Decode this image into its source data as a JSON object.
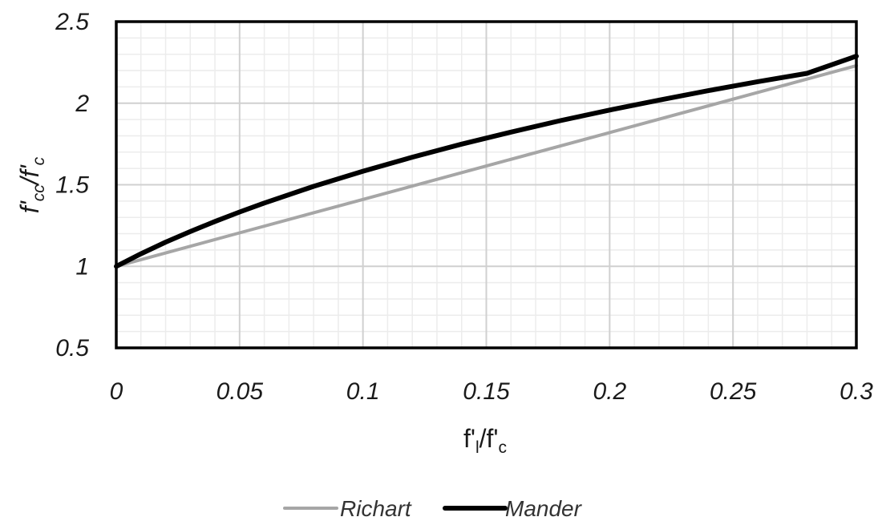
{
  "chart_data": {
    "type": "line",
    "xlabel": {
      "base": "f'",
      "sub": "l",
      "tail": "/f'",
      "sub2": "c"
    },
    "ylabel": {
      "base": "f'",
      "sub": "cc",
      "tail": "/f'",
      "sub2": "c"
    },
    "xlim": [
      0,
      0.3
    ],
    "ylim": [
      0.5,
      2.5
    ],
    "x_ticks": [
      "0",
      "0.05",
      "0.1",
      "0.15",
      "0.2",
      "0.25",
      "0.3"
    ],
    "y_ticks": [
      "0.5",
      "1",
      "1.5",
      "2",
      "2.5"
    ],
    "grid": true,
    "legend_position": "bottom",
    "series": [
      {
        "name": "Richart",
        "color": "#a6a6a6",
        "x": [
          0,
          0.05,
          0.1,
          0.15,
          0.2,
          0.25,
          0.3
        ],
        "y": [
          1,
          1.205,
          1.41,
          1.615,
          1.82,
          2.025,
          2.23
        ]
      },
      {
        "name": "Mander",
        "color": "#000000",
        "x": [
          0,
          0.01,
          0.02,
          0.03,
          0.04,
          0.05,
          0.06,
          0.08,
          0.1,
          0.12,
          0.14,
          0.16,
          0.18,
          0.2,
          0.22,
          0.24,
          0.26,
          0.28,
          0.3
        ],
        "y": [
          1,
          1.077,
          1.148,
          1.213,
          1.275,
          1.333,
          1.388,
          1.49,
          1.583,
          1.669,
          1.749,
          1.823,
          1.893,
          1.958,
          2.019,
          2.077,
          2.132,
          2.183,
          2.288
        ]
      }
    ]
  }
}
